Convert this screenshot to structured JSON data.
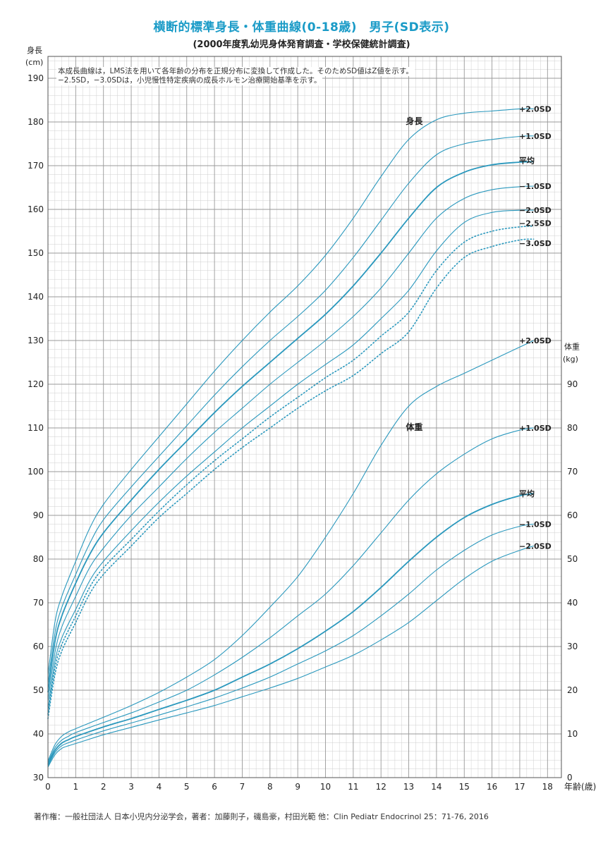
{
  "title": "横断的標準身長・体重曲線(0-18歳)　男子(SD表示)",
  "subtitle": "(2000年度乳幼児身体発育調査・学校保健統計調査)",
  "notes": [
    "本成長曲線は，LMS法を用いて各年齢の分布を正規分布に変換して作成した。そのためSD値はZ値を示す。",
    "−2.5SD，−3.0SDは，小児慢性特定疾病の成長ホルモン治療開始基準を示す。"
  ],
  "footer": "著作権：一般社団法人 日本小児内分泌学会，著者：加藤則子，磯島豪，村田光範 他：Clin Pediatr Endocrinol 25：71-76, 2016",
  "colors": {
    "accent": "#1a9bc7",
    "curve": "#2a98bd",
    "grid_major": "#999999",
    "grid_minor": "#cfcfcf"
  },
  "chart_data": {
    "type": "line",
    "x_axis": {
      "label": "年齢(歳)",
      "range": [
        0,
        18.5
      ],
      "ticks": [
        0,
        1,
        2,
        3,
        4,
        5,
        6,
        7,
        8,
        9,
        10,
        11,
        12,
        13,
        14,
        15,
        16,
        17,
        18
      ]
    },
    "y_axis_left": {
      "label_line1": "身長",
      "label_line2": "(cm)",
      "range": [
        30,
        195
      ],
      "ticks": [
        30,
        40,
        50,
        60,
        70,
        80,
        90,
        100,
        110,
        120,
        130,
        140,
        150,
        160,
        170,
        180,
        190
      ]
    },
    "y_axis_right": {
      "label_line1": "体重",
      "label_line2": "(kg)",
      "range": [
        0,
        95
      ],
      "ticks": [
        0,
        10,
        20,
        30,
        40,
        50,
        60,
        70,
        80,
        90
      ]
    },
    "grid": true,
    "height_label": "身長",
    "weight_label": "体重",
    "height_series": [
      {
        "name": "+2.0SD",
        "style": "solid",
        "x": [
          0,
          0.25,
          0.5,
          1,
          1.5,
          2,
          3,
          4,
          5,
          6,
          7,
          8,
          9,
          10,
          11,
          12,
          13,
          14,
          15,
          16,
          17,
          17.5
        ],
        "y": [
          53.5,
          65.5,
          71.5,
          79.5,
          87,
          92.5,
          100.5,
          108,
          115.5,
          123,
          130,
          136.5,
          142.5,
          149.5,
          158,
          167.5,
          176,
          180.5,
          182,
          182.5,
          183,
          183
        ]
      },
      {
        "name": "+1.0SD",
        "style": "solid",
        "x": [
          0,
          0.25,
          0.5,
          1,
          1.5,
          2,
          3,
          4,
          5,
          6,
          7,
          8,
          9,
          10,
          11,
          12,
          13,
          14,
          15,
          16,
          17,
          17.5
        ],
        "y": [
          51.5,
          63,
          69,
          76.5,
          83.5,
          89,
          96.5,
          103.5,
          110.5,
          117.5,
          124,
          130,
          135.5,
          141.5,
          149,
          157.5,
          166,
          172.5,
          175,
          176,
          176.7,
          176.8
        ]
      },
      {
        "name": "平均",
        "style": "bold",
        "x": [
          0,
          0.25,
          0.5,
          1,
          1.5,
          2,
          3,
          4,
          5,
          6,
          7,
          8,
          9,
          10,
          11,
          12,
          13,
          14,
          15,
          16,
          17,
          17.5
        ],
        "y": [
          49.5,
          61,
          67,
          74.5,
          81,
          86,
          93.5,
          100.5,
          107,
          113.5,
          119.5,
          125,
          130.5,
          136,
          142.5,
          150,
          158,
          165,
          168.5,
          170.2,
          170.8,
          170.9
        ]
      },
      {
        "name": "−1.0SD",
        "style": "solid",
        "x": [
          0,
          0.25,
          0.5,
          1,
          1.5,
          2,
          3,
          4,
          5,
          6,
          7,
          8,
          9,
          10,
          11,
          12,
          13,
          14,
          15,
          16,
          17,
          17.5
        ],
        "y": [
          47.5,
          58.5,
          64.5,
          71.5,
          78,
          82.5,
          90,
          96.5,
          103,
          109,
          114.5,
          120,
          125,
          130,
          135.5,
          142,
          150,
          158,
          162.5,
          164.5,
          165.2,
          165.3
        ]
      },
      {
        "name": "−2.0SD",
        "style": "solid",
        "x": [
          0,
          0.25,
          0.5,
          1,
          1.5,
          2,
          3,
          4,
          5,
          6,
          7,
          8,
          9,
          10,
          11,
          12,
          13,
          14,
          15,
          16,
          17,
          17.5
        ],
        "y": [
          45.5,
          56.5,
          62,
          68.5,
          75,
          79.5,
          86.5,
          93,
          99,
          104.5,
          110,
          115,
          120,
          124.5,
          129,
          135,
          141.5,
          150.5,
          157,
          159.3,
          159.8,
          159.8
        ]
      },
      {
        "name": "−2.5SD",
        "style": "dotted",
        "x": [
          0,
          0.25,
          0.5,
          1,
          1.5,
          2,
          3,
          4,
          5,
          6,
          7,
          8,
          9,
          10,
          11,
          12,
          13,
          14,
          15,
          16,
          17,
          17.5
        ],
        "y": [
          44.5,
          55,
          60.5,
          67,
          73.5,
          78,
          84.5,
          91,
          97,
          102.5,
          107.5,
          112.5,
          117,
          121.5,
          125.5,
          131,
          136.5,
          146,
          152.5,
          155,
          156,
          156.2
        ]
      },
      {
        "name": "−3.0SD",
        "style": "dotted",
        "x": [
          0,
          0.25,
          0.5,
          1,
          1.5,
          2,
          3,
          4,
          5,
          6,
          7,
          8,
          9,
          10,
          11,
          12,
          13,
          14,
          15,
          16,
          17,
          17.5
        ],
        "y": [
          43.5,
          53.5,
          59,
          65.5,
          72,
          76.5,
          83,
          89.5,
          95,
          100.5,
          105.5,
          110,
          114.5,
          118.5,
          122,
          127,
          132,
          142,
          149,
          151.5,
          153,
          153.2
        ]
      }
    ],
    "weight_series": [
      {
        "name": "+2.0SD",
        "style": "solid",
        "x": [
          0,
          0.25,
          0.5,
          0.75,
          1,
          2,
          3,
          4,
          5,
          6,
          7,
          8,
          9,
          10,
          11,
          12,
          13,
          14,
          15,
          16,
          17,
          17.5
        ],
        "y": [
          3.8,
          7.5,
          9.5,
          10.5,
          11.2,
          13.8,
          16.5,
          19.5,
          23,
          27,
          32.5,
          39,
          46,
          55,
          65,
          76,
          85,
          89.5,
          92.5,
          95.5,
          98.5,
          100
        ]
      },
      {
        "name": "+1.0SD",
        "style": "solid",
        "x": [
          0,
          0.25,
          0.5,
          0.75,
          1,
          2,
          3,
          4,
          5,
          6,
          7,
          8,
          9,
          10,
          11,
          12,
          13,
          14,
          15,
          16,
          17,
          17.5
        ],
        "y": [
          3.4,
          6.8,
          8.6,
          9.5,
          10.3,
          12.6,
          14.8,
          17.3,
          20,
          23.5,
          27.5,
          32,
          37,
          42,
          48.5,
          56,
          63.5,
          69.5,
          74,
          77.5,
          79.5,
          80
        ]
      },
      {
        "name": "平均",
        "style": "bold",
        "x": [
          0,
          0.25,
          0.5,
          0.75,
          1,
          2,
          3,
          4,
          5,
          6,
          7,
          8,
          9,
          10,
          11,
          12,
          13,
          14,
          15,
          16,
          17,
          17.5
        ],
        "y": [
          3.0,
          6.2,
          7.9,
          8.7,
          9.4,
          11.6,
          13.5,
          15.6,
          17.7,
          20,
          23,
          26,
          29.5,
          33.5,
          38,
          43.5,
          49.5,
          55,
          59.5,
          62.5,
          64.5,
          65
        ]
      },
      {
        "name": "−1.0SD",
        "style": "solid",
        "x": [
          0,
          0.25,
          0.5,
          0.75,
          1,
          2,
          3,
          4,
          5,
          6,
          7,
          8,
          9,
          10,
          11,
          12,
          13,
          14,
          15,
          16,
          17,
          17.5
        ],
        "y": [
          2.7,
          5.7,
          7.3,
          8.0,
          8.6,
          10.7,
          12.5,
          14.3,
          16.2,
          18.2,
          20.5,
          23,
          26,
          29,
          32.5,
          37,
          42,
          47.5,
          52,
          55.5,
          57.5,
          58
        ]
      },
      {
        "name": "−2.0SD",
        "style": "solid",
        "x": [
          0,
          0.25,
          0.5,
          0.75,
          1,
          2,
          3,
          4,
          5,
          6,
          7,
          8,
          9,
          10,
          11,
          12,
          13,
          14,
          15,
          16,
          17,
          17.5
        ],
        "y": [
          2.4,
          5.2,
          6.7,
          7.3,
          7.8,
          9.8,
          11.5,
          13.2,
          14.8,
          16.5,
          18.5,
          20.5,
          22.7,
          25.3,
          28,
          31.5,
          35.5,
          40.5,
          45.5,
          49.5,
          52,
          53
        ]
      }
    ]
  }
}
